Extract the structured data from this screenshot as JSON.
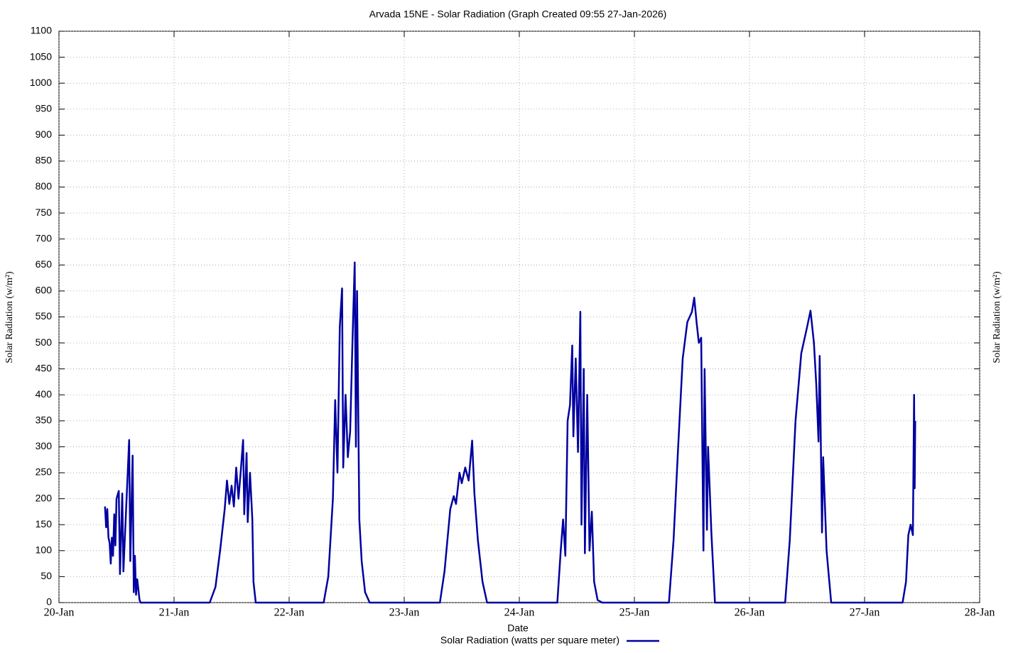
{
  "chart_data": {
    "type": "line",
    "title": "Arvada 15NE - Solar Radiation (Graph Created 09:55 27-Jan-2026)",
    "x_label": "Date",
    "y_label": "Solar Radiation (w/m²)",
    "y2_label": "Solar Radiation (w/m²)",
    "xlim": [
      0,
      8
    ],
    "xticks": [
      {
        "value": 0,
        "label": "20-Jan"
      },
      {
        "value": 1,
        "label": "21-Jan"
      },
      {
        "value": 2,
        "label": "22-Jan"
      },
      {
        "value": 3,
        "label": "23-Jan"
      },
      {
        "value": 4,
        "label": "24-Jan"
      },
      {
        "value": 5,
        "label": "25-Jan"
      },
      {
        "value": 6,
        "label": "26-Jan"
      },
      {
        "value": 7,
        "label": "27-Jan"
      },
      {
        "value": 8,
        "label": "28-Jan"
      }
    ],
    "ylim": [
      0,
      1100
    ],
    "yticks": [
      0,
      50,
      100,
      150,
      200,
      250,
      300,
      350,
      400,
      450,
      500,
      550,
      600,
      650,
      700,
      750,
      800,
      850,
      900,
      950,
      1000,
      1050,
      1100
    ],
    "grid": true,
    "legend": "bottom",
    "x": [
      0.4,
      0.41,
      0.42,
      0.43,
      0.44,
      0.45,
      0.46,
      0.47,
      0.48,
      0.49,
      0.5,
      0.52,
      0.53,
      0.55,
      0.56,
      0.61,
      0.62,
      0.64,
      0.65,
      0.66,
      0.67,
      0.68,
      0.7,
      0.71,
      1.31,
      1.36,
      1.4,
      1.44,
      1.46,
      1.48,
      1.5,
      1.52,
      1.54,
      1.56,
      1.58,
      1.6,
      1.61,
      1.63,
      1.64,
      1.66,
      1.68,
      1.69,
      1.71,
      2.3,
      2.34,
      2.38,
      2.4,
      2.42,
      2.44,
      2.46,
      2.47,
      2.49,
      2.51,
      2.53,
      2.55,
      2.57,
      2.58,
      2.59,
      2.61,
      2.63,
      2.66,
      2.7,
      3.31,
      3.35,
      3.4,
      3.43,
      3.45,
      3.48,
      3.5,
      3.53,
      3.56,
      3.59,
      3.61,
      3.64,
      3.68,
      3.72,
      4.33,
      4.36,
      4.38,
      4.4,
      4.42,
      4.44,
      4.46,
      4.47,
      4.49,
      4.51,
      4.53,
      4.54,
      4.56,
      4.57,
      4.59,
      4.61,
      4.63,
      4.65,
      4.68,
      4.72,
      5.3,
      5.34,
      5.38,
      5.42,
      5.46,
      5.5,
      5.52,
      5.54,
      5.56,
      5.58,
      5.6,
      5.61,
      5.63,
      5.64,
      5.67,
      5.7,
      6.31,
      6.35,
      6.4,
      6.45,
      6.5,
      6.53,
      6.56,
      6.58,
      6.6,
      6.61,
      6.63,
      6.64,
      6.67,
      6.71,
      7.33,
      7.36,
      7.38,
      7.4,
      7.42,
      7.43,
      7.435,
      7.44
    ],
    "series": [
      {
        "name": "Solar Radiation (watts per square meter)",
        "color": "#0000a0",
        "values": [
          185,
          145,
          180,
          125,
          115,
          75,
          125,
          90,
          170,
          110,
          200,
          215,
          55,
          210,
          60,
          313,
          80,
          283,
          20,
          90,
          15,
          45,
          5,
          0,
          0,
          30,
          100,
          180,
          235,
          190,
          225,
          185,
          260,
          200,
          255,
          313,
          170,
          288,
          155,
          250,
          160,
          40,
          0,
          0,
          50,
          200,
          390,
          250,
          530,
          605,
          260,
          400,
          280,
          330,
          500,
          655,
          300,
          600,
          160,
          80,
          20,
          0,
          0,
          60,
          180,
          205,
          190,
          250,
          230,
          260,
          235,
          312,
          210,
          120,
          40,
          0,
          0,
          100,
          160,
          90,
          350,
          380,
          495,
          320,
          470,
          290,
          560,
          150,
          450,
          95,
          400,
          100,
          175,
          40,
          5,
          0,
          0,
          120,
          300,
          470,
          540,
          560,
          587,
          540,
          500,
          510,
          100,
          450,
          140,
          300,
          130,
          0,
          0,
          120,
          350,
          480,
          530,
          562,
          500,
          420,
          310,
          475,
          135,
          280,
          100,
          0,
          0,
          40,
          130,
          150,
          130,
          400,
          220,
          350
        ]
      }
    ]
  }
}
